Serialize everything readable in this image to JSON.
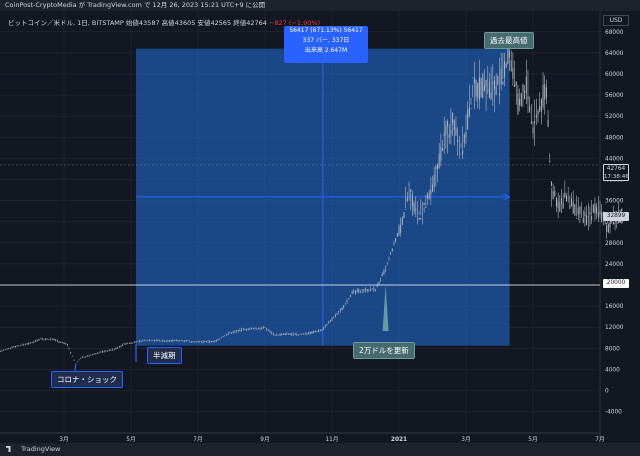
{
  "header": {
    "attribution": "CoinPost-CryptoMedia が TradingView.com で 12月 26, 2023 15:21 UTC+9 に公開"
  },
  "legend": {
    "symbol": "ビットコイン／米ドル, 1日, BITSTAMP",
    "open": "始値43587",
    "high": "高値43605",
    "low": "安値42565",
    "close": "終値42764",
    "change": "−827 (−1.90%)"
  },
  "currency_button": "USD",
  "measure_box": {
    "line1": "56417 (671.13%) 56417",
    "line2": "337 バー, 337日",
    "line3": "出来高 2.647M"
  },
  "annotations": {
    "ath": "過去最高値",
    "halving": "半減期",
    "covid": "コロナ・ショック",
    "break20k": "2万ドルを更新"
  },
  "price_tags": {
    "current_price": "42764",
    "countdown": "17:38:46",
    "level_32899": "32899",
    "level_20000": "20000"
  },
  "footer": {
    "brand": "TradingView"
  },
  "colors": {
    "background": "#131722",
    "grid": "#2a2e39",
    "candle": "#b2b5be",
    "measure_fill": "#1e5aa8",
    "measure_line": "#2962ff",
    "callout_bg": "#2962ff",
    "callout_teal": "#466b6e"
  },
  "chart_data": {
    "type": "line",
    "title": "ビットコイン／米ドル, 1日, BITSTAMP",
    "ylim": [
      -4000,
      68000
    ],
    "y_ticks": [
      -4000,
      0,
      4000,
      8000,
      12000,
      16000,
      20000,
      24000,
      28000,
      32000,
      36000,
      40000,
      44000,
      48000,
      52000,
      56000,
      60000,
      64000,
      68000
    ],
    "x_ticks": [
      {
        "label": "3月",
        "t": 2.0
      },
      {
        "label": "5月",
        "t": 4.0
      },
      {
        "label": "7月",
        "t": 6.0
      },
      {
        "label": "9月",
        "t": 8.0
      },
      {
        "label": "11月",
        "t": 10.0
      },
      {
        "label": "2021",
        "t": 12.0
      },
      {
        "label": "3月",
        "t": 14.0
      },
      {
        "label": "5月",
        "t": 16.0
      },
      {
        "label": "7月",
        "t": 18.0
      }
    ],
    "series": [
      {
        "values": [
          [
            0.0,
            7200
          ],
          [
            0.5,
            8300
          ],
          [
            1.0,
            9000
          ],
          [
            1.3,
            9800
          ],
          [
            1.7,
            9700
          ],
          [
            2.1,
            8700
          ],
          [
            2.35,
            5000
          ],
          [
            2.5,
            6200
          ],
          [
            2.8,
            6700
          ],
          [
            3.1,
            7300
          ],
          [
            3.5,
            7800
          ],
          [
            3.8,
            8800
          ],
          [
            4.15,
            9200
          ],
          [
            4.5,
            9600
          ],
          [
            5.0,
            9400
          ],
          [
            5.5,
            9500
          ],
          [
            6.0,
            9200
          ],
          [
            6.5,
            9300
          ],
          [
            6.9,
            10800
          ],
          [
            7.3,
            11500
          ],
          [
            7.6,
            11700
          ],
          [
            8.0,
            11900
          ],
          [
            8.3,
            10500
          ],
          [
            8.7,
            10700
          ],
          [
            9.0,
            10600
          ],
          [
            9.4,
            11000
          ],
          [
            9.7,
            11500
          ],
          [
            10.0,
            13500
          ],
          [
            10.3,
            15500
          ],
          [
            10.6,
            18500
          ],
          [
            10.9,
            19000
          ],
          [
            11.3,
            19200
          ],
          [
            11.6,
            23000
          ],
          [
            11.9,
            28500
          ],
          [
            12.1,
            32000
          ],
          [
            12.3,
            39000
          ],
          [
            12.45,
            34000
          ],
          [
            12.7,
            33500
          ],
          [
            13.0,
            38000
          ],
          [
            13.3,
            47000
          ],
          [
            13.6,
            51000
          ],
          [
            13.9,
            46000
          ],
          [
            14.2,
            57000
          ],
          [
            14.5,
            58000
          ],
          [
            14.8,
            57500
          ],
          [
            15.1,
            59000
          ],
          [
            15.3,
            64800
          ],
          [
            15.55,
            54000
          ],
          [
            15.8,
            58000
          ],
          [
            16.0,
            49500
          ],
          [
            16.2,
            54000
          ],
          [
            16.4,
            57000
          ],
          [
            16.55,
            38000
          ],
          [
            16.8,
            35000
          ],
          [
            17.0,
            37000
          ],
          [
            17.3,
            34000
          ],
          [
            17.6,
            32500
          ],
          [
            17.9,
            35000
          ],
          [
            18.2,
            31000
          ],
          [
            18.5,
            33000
          ],
          [
            18.7,
            33500
          ]
        ]
      }
    ],
    "measure": {
      "from_t": 4.15,
      "to_t": 15.3,
      "from_price": 8500,
      "to_price": 64800,
      "mid_price": 36700
    },
    "hlines": [
      20000
    ],
    "ath": {
      "t": 15.3,
      "price": 64800
    },
    "halving": {
      "t": 4.15,
      "price": 8800
    },
    "covid": {
      "t": 2.35,
      "price": 5000
    },
    "break20k": {
      "t": 11.6,
      "price": 20000
    },
    "current_price": 42764,
    "label_price": 32899
  }
}
